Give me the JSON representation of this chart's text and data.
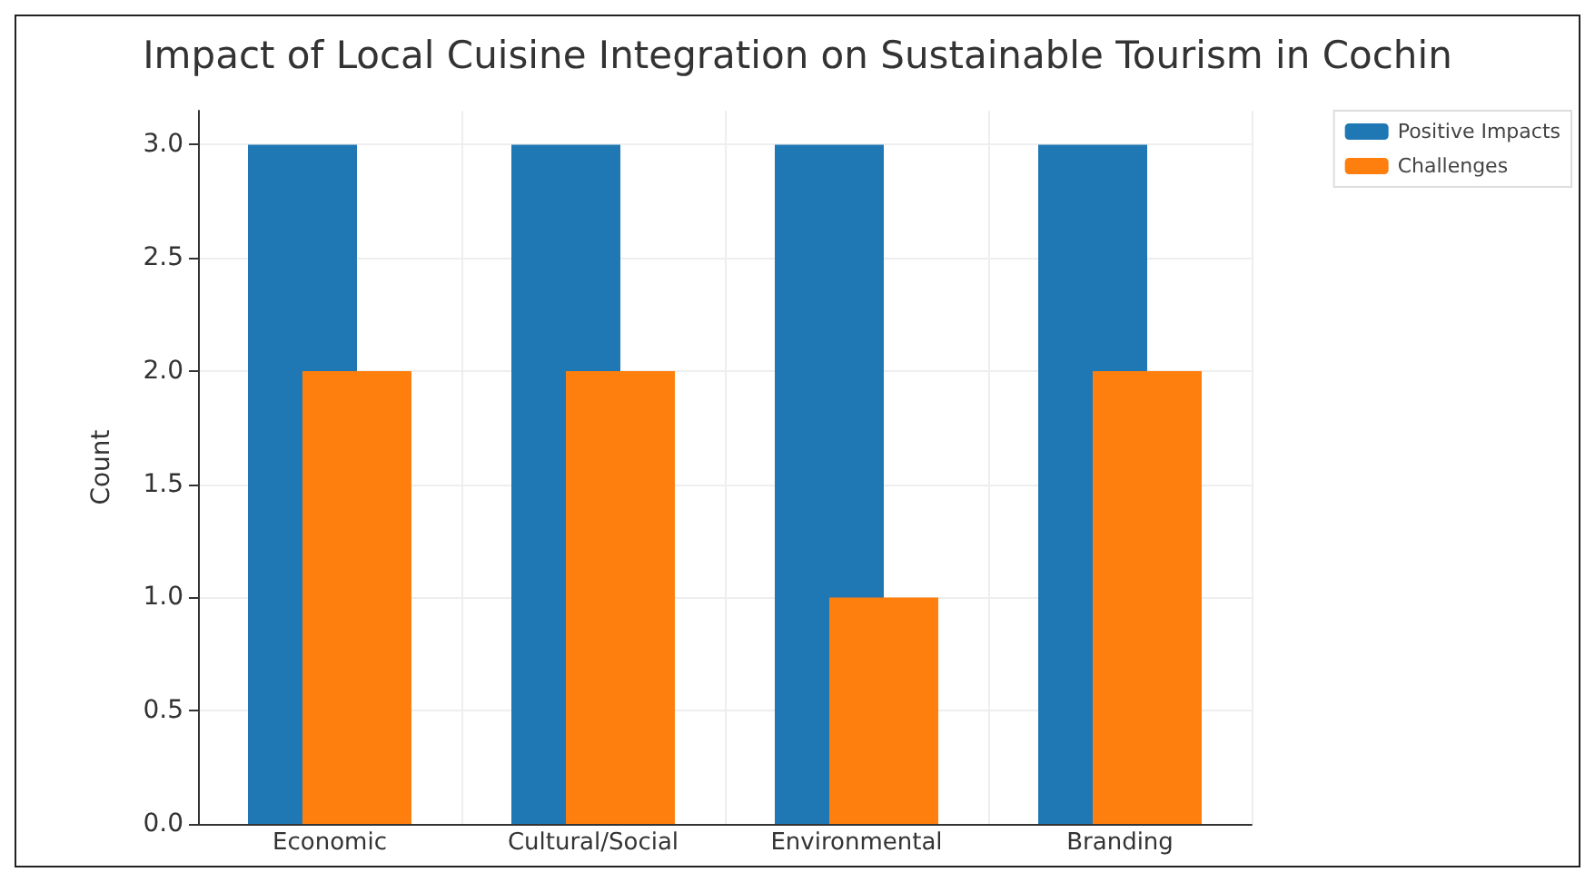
{
  "chart_data": {
    "type": "bar",
    "title": "Impact of Local Cuisine Integration on Sustainable Tourism in Cochin",
    "ylabel": "Count",
    "categories": [
      "Economic",
      "Cultural/Social",
      "Environmental",
      "Branding"
    ],
    "series": [
      {
        "name": "Positive Impacts",
        "color": "#1f77b4",
        "values": [
          3,
          3,
          3,
          3
        ]
      },
      {
        "name": "Challenges",
        "color": "#ff7f0e",
        "values": [
          2,
          2,
          1,
          2
        ]
      }
    ],
    "ylim": [
      0,
      3.15
    ],
    "yticks": [
      {
        "value": 0,
        "label": "0.0"
      },
      0.5,
      {
        "value": 1,
        "label": "1.0"
      },
      1.5,
      {
        "value": 2,
        "label": "2.0"
      },
      2.5,
      {
        "value": 3,
        "label": "3.0"
      }
    ],
    "grid": true,
    "legend": "right"
  }
}
